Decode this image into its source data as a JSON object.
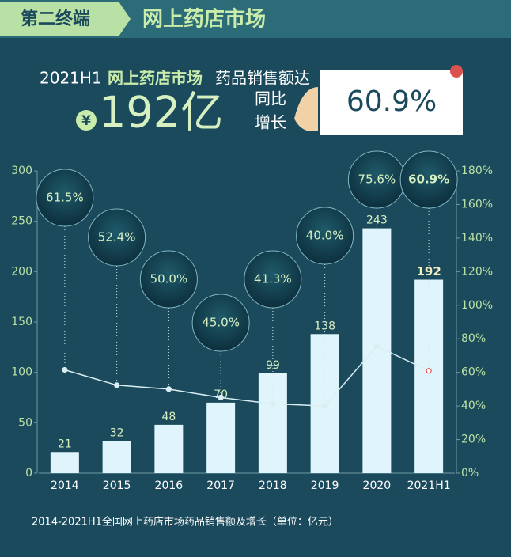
{
  "header": {
    "tag": "第二终端",
    "title": "网上药店市场",
    "headline_period": "2021H1",
    "headline_market": "网上药店市场",
    "headline_verb": "药品销售额达",
    "currency": "¥",
    "amount": "192亿",
    "yoy_line1": "同比",
    "yoy_line2": "增长",
    "growth": "60.9%"
  },
  "chart_data": {
    "type": "bar",
    "categories": [
      "2014",
      "2015",
      "2016",
      "2017",
      "2018",
      "2019",
      "2020",
      "2021H1"
    ],
    "series": [
      {
        "type": "bar",
        "color": "#dff5fb",
        "values": [
          21,
          32,
          48,
          70,
          99,
          138,
          243,
          192
        ]
      },
      {
        "type": "line",
        "axis": "y2",
        "color": "#d8eef2",
        "values": [
          61.5,
          52.4,
          50.0,
          45.0,
          41.3,
          40.0,
          75.6,
          60.9
        ],
        "value_labels": [
          "61.5%",
          "52.4%",
          "50.0%",
          "45.0%",
          "41.3%",
          "40.0%",
          "75.6%",
          "60.9%"
        ]
      }
    ],
    "ylim": [
      0,
      300
    ],
    "yticks": [
      0,
      50,
      100,
      150,
      200,
      250,
      300
    ],
    "y2lim": [
      0,
      180
    ],
    "y2ticks": [
      {
        "value": 0,
        "label": "0%"
      },
      {
        "value": 20,
        "label": "20%"
      },
      {
        "value": 40,
        "label": "40%"
      },
      {
        "value": 60,
        "label": "60%"
      },
      {
        "value": 80,
        "label": "80%"
      },
      {
        "value": 100,
        "label": "100%"
      },
      {
        "value": 120,
        "label": "120%"
      },
      {
        "value": 140,
        "label": "140%"
      },
      {
        "value": 160,
        "label": "160%"
      },
      {
        "value": 180,
        "label": "180%"
      }
    ]
  },
  "footnote": "2014-2021H1全国网上药店市场药品销售额及增长（单位：亿元）"
}
